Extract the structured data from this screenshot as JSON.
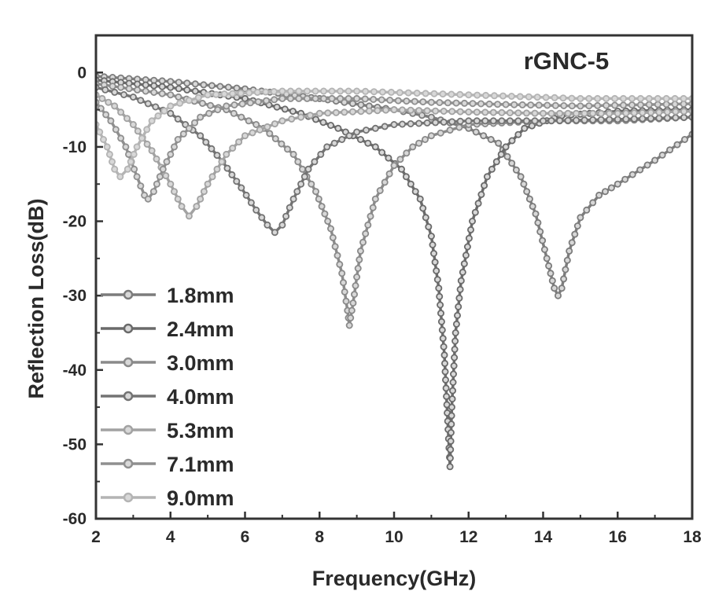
{
  "chart_data": {
    "type": "line",
    "title": "rGNC-5",
    "xlabel": "Frequency(GHz)",
    "ylabel": "Reflection Loss(dB)",
    "xlim": [
      2,
      18
    ],
    "ylim": [
      -60,
      5
    ],
    "xticks": [
      2,
      4,
      6,
      8,
      10,
      12,
      14,
      16,
      18
    ],
    "yticks": [
      0,
      -10,
      -20,
      -30,
      -40,
      -50,
      -60
    ],
    "grid": false,
    "legend_position": "bottom-left",
    "series": [
      {
        "name": "1.8mm",
        "color": "#7c7c7c",
        "points": [
          [
            2,
            -0.5
          ],
          [
            4,
            -1.2
          ],
          [
            6,
            -2.2
          ],
          [
            8,
            -3.5
          ],
          [
            10,
            -5
          ],
          [
            11,
            -6
          ],
          [
            12,
            -7.5
          ],
          [
            12.8,
            -9.5
          ],
          [
            13.4,
            -14
          ],
          [
            13.8,
            -19
          ],
          [
            14.1,
            -25
          ],
          [
            14.3,
            -29
          ],
          [
            14.4,
            -30
          ],
          [
            14.5,
            -29
          ],
          [
            14.7,
            -24
          ],
          [
            15,
            -19.5
          ],
          [
            15.5,
            -16.5
          ],
          [
            16,
            -15
          ],
          [
            17,
            -11.8
          ],
          [
            18,
            -8.3
          ]
        ]
      },
      {
        "name": "2.4mm",
        "color": "#6a6a6a",
        "points": [
          [
            2,
            -1
          ],
          [
            4,
            -2
          ],
          [
            6,
            -3.5
          ],
          [
            7.5,
            -5.5
          ],
          [
            8.5,
            -7.5
          ],
          [
            9.5,
            -10
          ],
          [
            10.2,
            -13
          ],
          [
            10.7,
            -17
          ],
          [
            11,
            -22
          ],
          [
            11.2,
            -29
          ],
          [
            11.35,
            -38
          ],
          [
            11.45,
            -48
          ],
          [
            11.5,
            -53
          ],
          [
            11.55,
            -45
          ],
          [
            11.65,
            -35
          ],
          [
            11.8,
            -28
          ],
          [
            12.1,
            -20
          ],
          [
            12.5,
            -14
          ],
          [
            13,
            -10
          ],
          [
            13.5,
            -7.5
          ],
          [
            14.5,
            -5.8
          ],
          [
            16,
            -5.2
          ],
          [
            18,
            -5
          ]
        ]
      },
      {
        "name": "3.0mm",
        "color": "#8a8a8a",
        "points": [
          [
            2,
            -1.5
          ],
          [
            4,
            -3
          ],
          [
            5.5,
            -5
          ],
          [
            6.5,
            -7.5
          ],
          [
            7.3,
            -11
          ],
          [
            7.9,
            -16
          ],
          [
            8.3,
            -21
          ],
          [
            8.6,
            -27
          ],
          [
            8.75,
            -32
          ],
          [
            8.8,
            -34
          ],
          [
            8.9,
            -31
          ],
          [
            9.1,
            -24
          ],
          [
            9.5,
            -17
          ],
          [
            10,
            -12.5
          ],
          [
            10.5,
            -10
          ],
          [
            11,
            -8.5
          ],
          [
            12,
            -7
          ],
          [
            14,
            -6.5
          ],
          [
            16,
            -6.5
          ],
          [
            18,
            -6
          ]
        ]
      },
      {
        "name": "4.0mm",
        "color": "#737373",
        "points": [
          [
            2,
            -2
          ],
          [
            3,
            -3.3
          ],
          [
            4,
            -5.5
          ],
          [
            4.8,
            -8.5
          ],
          [
            5.4,
            -12
          ],
          [
            5.9,
            -15.5
          ],
          [
            6.3,
            -18.5
          ],
          [
            6.6,
            -20.5
          ],
          [
            6.8,
            -21.5
          ],
          [
            7,
            -20.5
          ],
          [
            7.3,
            -17
          ],
          [
            7.7,
            -13
          ],
          [
            8.2,
            -10
          ],
          [
            9,
            -8
          ],
          [
            10,
            -7
          ],
          [
            12,
            -6.5
          ],
          [
            14,
            -6.5
          ],
          [
            16,
            -6.3
          ],
          [
            18,
            -6
          ]
        ]
      },
      {
        "name": "5.3mm",
        "color": "#a2a2a2",
        "points": [
          [
            2,
            -3
          ],
          [
            2.5,
            -4.5
          ],
          [
            3,
            -7
          ],
          [
            3.5,
            -10.5
          ],
          [
            4,
            -15
          ],
          [
            4.3,
            -18
          ],
          [
            4.5,
            -19.3
          ],
          [
            4.7,
            -18
          ],
          [
            5,
            -15
          ],
          [
            5.5,
            -11
          ],
          [
            6,
            -8.5
          ],
          [
            7,
            -6.5
          ],
          [
            8,
            -5.5
          ],
          [
            10,
            -5
          ],
          [
            12,
            -5.3
          ],
          [
            14,
            -5.5
          ],
          [
            16,
            -5.5
          ],
          [
            18,
            -5.2
          ]
        ]
      },
      {
        "name": "7.1mm",
        "color": "#8f8f8f",
        "points": [
          [
            2,
            -4
          ],
          [
            2.4,
            -6.5
          ],
          [
            2.8,
            -10
          ],
          [
            3.1,
            -14
          ],
          [
            3.3,
            -16.5
          ],
          [
            3.4,
            -17
          ],
          [
            3.55,
            -16
          ],
          [
            3.8,
            -13
          ],
          [
            4.2,
            -9
          ],
          [
            4.8,
            -6
          ],
          [
            5.5,
            -4.5
          ],
          [
            7,
            -3.5
          ],
          [
            9,
            -3.5
          ],
          [
            11,
            -4
          ],
          [
            13,
            -4.3
          ],
          [
            15,
            -4.5
          ],
          [
            18,
            -4.2
          ]
        ]
      },
      {
        "name": "9.0mm",
        "color": "#b4b4b4",
        "points": [
          [
            2,
            -7
          ],
          [
            2.3,
            -10
          ],
          [
            2.5,
            -13
          ],
          [
            2.65,
            -14
          ],
          [
            2.85,
            -13
          ],
          [
            3.1,
            -10
          ],
          [
            3.5,
            -6.5
          ],
          [
            4,
            -4.5
          ],
          [
            5,
            -3
          ],
          [
            7,
            -2.5
          ],
          [
            9,
            -2.5
          ],
          [
            12,
            -3
          ],
          [
            15,
            -3.5
          ],
          [
            18,
            -3.5
          ]
        ]
      }
    ]
  }
}
